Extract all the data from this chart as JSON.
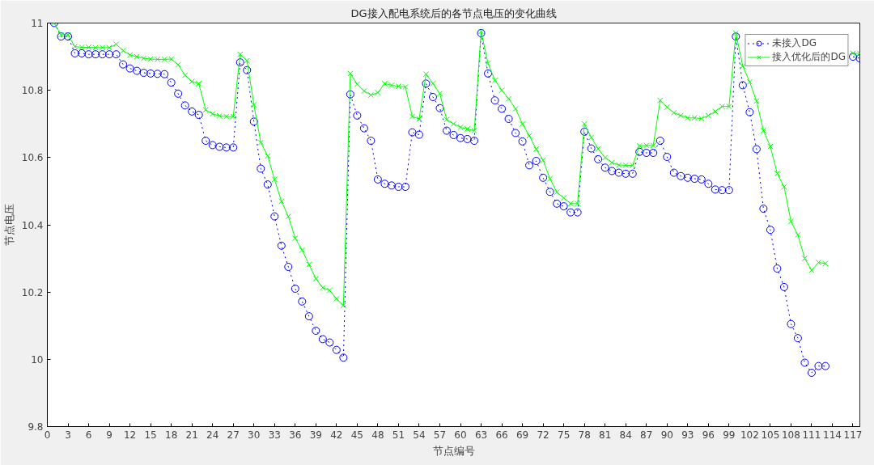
{
  "chart_data": {
    "type": "line",
    "title": "DG接入配电系统后的各节点电压的变化曲线",
    "xlabel": "节点编号",
    "ylabel": "节点电压",
    "x": [
      1,
      2,
      3,
      4,
      5,
      6,
      7,
      8,
      9,
      10,
      11,
      12,
      13,
      14,
      15,
      16,
      17,
      18,
      19,
      20,
      21,
      22,
      23,
      24,
      25,
      26,
      27,
      28,
      29,
      30,
      31,
      32,
      33,
      34,
      35,
      36,
      37,
      38,
      39,
      40,
      41,
      42,
      43,
      44,
      45,
      46,
      47,
      48,
      49,
      50,
      51,
      52,
      53,
      54,
      55,
      56,
      57,
      58,
      59,
      60,
      61,
      62,
      63,
      64,
      65,
      66,
      67,
      68,
      69,
      70,
      71,
      72,
      73,
      74,
      75,
      76,
      77,
      78,
      79,
      80,
      81,
      82,
      83,
      84,
      85,
      86,
      87,
      88,
      89,
      90,
      91,
      92,
      93,
      94,
      95,
      96,
      97,
      98,
      99,
      100,
      101,
      102,
      103,
      104,
      105,
      106,
      107,
      108,
      109,
      110,
      111,
      112,
      113,
      114,
      115,
      116,
      117,
      118
    ],
    "series": [
      {
        "name": "未接入DG",
        "color": "#0000ff",
        "marker": "circle",
        "line_style": "dotted",
        "values": [
          11.0,
          10.96,
          10.96,
          10.91,
          10.91,
          10.907,
          10.907,
          10.907,
          10.907,
          10.907,
          10.877,
          10.865,
          10.858,
          10.852,
          10.85,
          10.849,
          10.848,
          10.823,
          10.79,
          10.755,
          10.737,
          10.727,
          10.65,
          10.637,
          10.632,
          10.63,
          10.63,
          10.883,
          10.86,
          10.707,
          10.567,
          10.52,
          10.425,
          10.338,
          10.275,
          10.21,
          10.172,
          10.128,
          10.085,
          10.06,
          10.05,
          10.028,
          10.005,
          10.788,
          10.725,
          10.687,
          10.65,
          10.535,
          10.522,
          10.517,
          10.513,
          10.513,
          10.675,
          10.668,
          10.82,
          10.78,
          10.747,
          10.68,
          10.667,
          10.658,
          10.655,
          10.65,
          10.97,
          10.85,
          10.77,
          10.745,
          10.715,
          10.673,
          10.648,
          10.577,
          10.59,
          10.54,
          10.498,
          10.463,
          10.455,
          10.437,
          10.437,
          10.677,
          10.627,
          10.595,
          10.57,
          10.56,
          10.555,
          10.552,
          10.552,
          10.617,
          10.614,
          10.614,
          10.65,
          10.602,
          10.555,
          10.545,
          10.54,
          10.537,
          10.535,
          10.522,
          10.505,
          10.503,
          10.503,
          10.96,
          10.815,
          10.735,
          10.625,
          10.448,
          10.385,
          10.27,
          10.215,
          10.105,
          10.063,
          9.99,
          9.96,
          9.98,
          9.98,
          null,
          null,
          null,
          10.9,
          10.895
        ]
      },
      {
        "name": "接入优化后的DG",
        "color": "#00ff00",
        "marker": "cross",
        "line_style": "solid",
        "values": [
          11.0,
          10.965,
          10.965,
          10.93,
          10.928,
          10.928,
          10.927,
          10.927,
          10.927,
          10.937,
          10.918,
          10.905,
          10.9,
          10.895,
          10.893,
          10.892,
          10.892,
          10.893,
          10.876,
          10.845,
          10.826,
          10.82,
          10.742,
          10.73,
          10.724,
          10.722,
          10.722,
          10.907,
          10.888,
          10.757,
          10.645,
          10.605,
          10.535,
          10.47,
          10.425,
          10.36,
          10.325,
          10.282,
          10.24,
          10.213,
          10.205,
          10.18,
          10.16,
          10.85,
          10.818,
          10.798,
          10.786,
          10.793,
          10.82,
          10.815,
          10.812,
          10.81,
          10.722,
          10.715,
          10.848,
          10.82,
          10.79,
          10.713,
          10.7,
          10.69,
          10.685,
          10.68,
          10.975,
          10.88,
          10.83,
          10.8,
          10.775,
          10.745,
          10.7,
          10.665,
          10.625,
          10.592,
          10.537,
          10.497,
          10.48,
          10.463,
          10.463,
          10.7,
          10.66,
          10.626,
          10.6,
          10.585,
          10.578,
          10.577,
          10.577,
          10.635,
          10.636,
          10.636,
          10.77,
          10.75,
          10.733,
          10.725,
          10.718,
          10.718,
          10.716,
          10.725,
          10.737,
          10.752,
          10.752,
          10.97,
          10.872,
          10.825,
          10.768,
          10.68,
          10.633,
          10.553,
          10.513,
          10.41,
          10.37,
          10.3,
          10.265,
          10.288,
          10.285,
          null,
          null,
          null,
          10.91,
          10.91
        ]
      }
    ],
    "xlim": [
      0,
      118
    ],
    "ylim": [
      9.8,
      11
    ],
    "xticks": [
      0,
      3,
      6,
      9,
      12,
      15,
      18,
      21,
      24,
      27,
      30,
      33,
      36,
      39,
      42,
      45,
      48,
      51,
      54,
      57,
      60,
      63,
      66,
      69,
      72,
      75,
      78,
      81,
      84,
      87,
      90,
      93,
      96,
      99,
      102,
      105,
      108,
      111,
      114,
      117
    ],
    "yticks": [
      {
        "value": 9.8,
        "label": "9.8"
      },
      {
        "value": 10,
        "label": "10"
      },
      {
        "value": 10.2,
        "label": "10.2"
      },
      {
        "value": 10.4,
        "label": "10.4"
      },
      {
        "value": 10.6,
        "label": "10.6"
      },
      {
        "value": 10.8,
        "label": "10.8"
      },
      {
        "value": 11,
        "label": "11"
      }
    ],
    "grid": false,
    "legend": "top right"
  }
}
